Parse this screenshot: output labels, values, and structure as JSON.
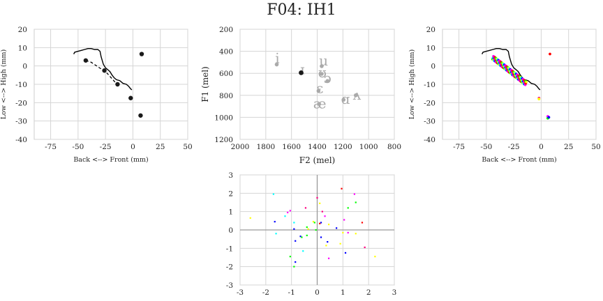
{
  "title": "F04: IH1",
  "chart_data": [
    {
      "id": "ax1",
      "type": "line",
      "xlabel": "Back <--> Front (mm)",
      "ylabel": "Low <--> High (mm)",
      "xlim": [
        -90,
        50
      ],
      "ylim": [
        -40,
        20
      ],
      "xticks": [
        -75,
        -50,
        -25,
        0,
        25,
        50
      ],
      "yticks": [
        -40,
        -30,
        -20,
        -10,
        0,
        10,
        20
      ],
      "grid": true,
      "solid_line": [
        [
          -54,
          6.5
        ],
        [
          -53,
          7.5
        ],
        [
          -50,
          8
        ],
        [
          -47,
          8.5
        ],
        [
          -44,
          9
        ],
        [
          -41,
          9.5
        ],
        [
          -38,
          9.5
        ],
        [
          -35,
          9
        ],
        [
          -32,
          9
        ],
        [
          -30,
          8
        ],
        [
          -29,
          5
        ],
        [
          -27,
          1
        ],
        [
          -25,
          -1
        ],
        [
          -23,
          -2
        ],
        [
          -21,
          -3
        ],
        [
          -19,
          -5
        ],
        [
          -17,
          -6.5
        ],
        [
          -15,
          -7.5
        ],
        [
          -12,
          -8
        ],
        [
          -9,
          -9.5
        ],
        [
          -6,
          -10
        ],
        [
          -4,
          -11
        ],
        [
          -2,
          -12.5
        ],
        [
          -1,
          -13
        ]
      ],
      "dashed_line": [
        [
          -43,
          3
        ],
        [
          -38,
          2
        ],
        [
          -33,
          0
        ],
        [
          -28,
          -2
        ],
        [
          -25,
          -3
        ],
        [
          -22,
          -5
        ],
        [
          -19,
          -7
        ],
        [
          -16,
          -9
        ],
        [
          -14,
          -10
        ]
      ],
      "points": [
        [
          -43,
          3
        ],
        [
          -26,
          -2.5
        ],
        [
          -14,
          -10
        ],
        [
          -2,
          -17.5
        ],
        [
          8,
          6.5
        ],
        [
          7,
          -27
        ]
      ],
      "colors": {
        "line": "#000000",
        "point": "#1a1a1a"
      }
    },
    {
      "id": "ax2",
      "type": "scatter",
      "xlabel": "F2 (mel)",
      "ylabel": "F1 (mel)",
      "xlim": [
        2000,
        800
      ],
      "ylim": [
        1200,
        200
      ],
      "xticks": [
        2000,
        1800,
        1600,
        1400,
        1200,
        1000,
        800
      ],
      "yticks": [
        200,
        400,
        600,
        800,
        1000,
        1200
      ],
      "grid": true,
      "vowels": [
        {
          "label": "i",
          "x": 1710,
          "y": 470
        },
        {
          "label": "ɪ",
          "x": 1515,
          "y": 570
        },
        {
          "label": "u",
          "x": 1350,
          "y": 490
        },
        {
          "label": "ʊ",
          "x": 1360,
          "y": 600
        },
        {
          "label": "ɔ",
          "x": 1320,
          "y": 650
        },
        {
          "label": "ɛ",
          "x": 1380,
          "y": 740
        },
        {
          "label": "æ",
          "x": 1380,
          "y": 880
        },
        {
          "label": "ɑ",
          "x": 1180,
          "y": 840
        },
        {
          "label": "ʌ",
          "x": 1090,
          "y": 800
        }
      ],
      "vowel_points": [
        [
          1715,
          520
        ],
        [
          1525,
          595
        ],
        [
          1365,
          535
        ],
        [
          1365,
          605
        ],
        [
          1320,
          670
        ],
        [
          1390,
          760
        ],
        [
          1385,
          880
        ],
        [
          1195,
          840
        ],
        [
          1100,
          800
        ]
      ],
      "highlight": {
        "x": 1525,
        "y": 595
      },
      "colors": {
        "vowel": "#aaaaaa",
        "highlight": "#1a1a1a"
      }
    },
    {
      "id": "ax3",
      "type": "line",
      "xlabel": "Back <--> Front (mm)",
      "ylabel": "Low <--> High (mm)",
      "xlim": [
        -90,
        50
      ],
      "ylim": [
        -40,
        20
      ],
      "xticks": [
        -75,
        -50,
        -25,
        0,
        25,
        50
      ],
      "yticks": [
        -40,
        -30,
        -20,
        -10,
        0,
        10,
        20
      ],
      "grid": true,
      "solid_line": [
        [
          -54,
          6.5
        ],
        [
          -53,
          7.5
        ],
        [
          -50,
          8
        ],
        [
          -47,
          8.5
        ],
        [
          -44,
          9
        ],
        [
          -41,
          9.5
        ],
        [
          -38,
          9.5
        ],
        [
          -35,
          9
        ],
        [
          -32,
          9
        ],
        [
          -30,
          8
        ],
        [
          -29,
          5
        ],
        [
          -27,
          1
        ],
        [
          -25,
          -1
        ],
        [
          -23,
          -2
        ],
        [
          -21,
          -3
        ],
        [
          -19,
          -5
        ],
        [
          -17,
          -6.5
        ],
        [
          -15,
          -7.5
        ],
        [
          -12,
          -8
        ],
        [
          -9,
          -9.5
        ],
        [
          -6,
          -10
        ],
        [
          -4,
          -11
        ],
        [
          -2,
          -12.5
        ],
        [
          -1,
          -13
        ]
      ],
      "trajectory_start": [
        -44,
        4.5
      ],
      "trajectory_end": [
        -14,
        -9.5
      ],
      "trajectory_count": 40,
      "trajectory_bands": [
        -0.8,
        0,
        0.8
      ],
      "outliers": [
        [
          -2,
          -17.5
        ],
        [
          -2,
          -18
        ],
        [
          6,
          -27.5
        ],
        [
          6,
          -28.5
        ],
        [
          7,
          -28
        ],
        [
          8,
          6.5
        ]
      ],
      "colors": {
        "line": "#000000"
      },
      "palette": [
        "#00ff00",
        "#ffff00",
        "#00ffff",
        "#0000ff",
        "#ff00ff",
        "#ff0080",
        "#ff0000"
      ]
    },
    {
      "id": "ax4",
      "type": "scatter",
      "xlim": [
        -3,
        3
      ],
      "ylim": [
        -3,
        3
      ],
      "xticks": [
        -3,
        -2,
        -1,
        0,
        1,
        2,
        3
      ],
      "yticks": [
        -3,
        -2,
        -1,
        0,
        1,
        2,
        3
      ],
      "grid": true,
      "zero_lines": true,
      "points": [
        [
          -2.6,
          0.65,
          "#ffff00"
        ],
        [
          -1.7,
          1.95,
          "#00ffff"
        ],
        [
          -1.65,
          0.45,
          "#0000ff"
        ],
        [
          -1.6,
          -0.2,
          "#00ffff"
        ],
        [
          -1.25,
          0.75,
          "#00ffff"
        ],
        [
          -1.15,
          0.95,
          "#ff00ff"
        ],
        [
          -1.05,
          1.05,
          "#ff00ff"
        ],
        [
          -1.05,
          -1.45,
          "#00ff00"
        ],
        [
          -0.9,
          0.05,
          "#0000ff"
        ],
        [
          -0.85,
          -0.6,
          "#0000ff"
        ],
        [
          -0.85,
          -1.75,
          "#0000ff"
        ],
        [
          -0.9,
          -2.0,
          "#00ff00"
        ],
        [
          -0.9,
          0.4,
          "#00ffff"
        ],
        [
          -0.65,
          -0.35,
          "#0000ff"
        ],
        [
          -0.6,
          -0.4,
          "#00ff00"
        ],
        [
          -0.55,
          -1.15,
          "#00ffff"
        ],
        [
          -0.45,
          1.2,
          "#ff0080"
        ],
        [
          -0.4,
          -0.3,
          "#00ff00"
        ],
        [
          -0.4,
          0.15,
          "#00ff00"
        ],
        [
          -0.35,
          0.05,
          "#ffff00"
        ],
        [
          -0.15,
          0.45,
          "#ffff00"
        ],
        [
          -0.1,
          0.4,
          "#00ff00"
        ],
        [
          -0.05,
          0.0,
          "#00ff00"
        ],
        [
          0.0,
          1.75,
          "#ff0080"
        ],
        [
          0.1,
          0.35,
          "#ff0000"
        ],
        [
          0.1,
          1.45,
          "#ffff00"
        ],
        [
          0.15,
          0.4,
          "#0000ff"
        ],
        [
          0.15,
          -0.4,
          "#0000ff"
        ],
        [
          0.2,
          1.0,
          "#ff0080"
        ],
        [
          0.3,
          0.75,
          "#ff00ff"
        ],
        [
          0.35,
          -0.85,
          "#ffff00"
        ],
        [
          0.4,
          -0.65,
          "#0000ff"
        ],
        [
          0.45,
          -1.55,
          "#ff00ff"
        ],
        [
          0.45,
          0.3,
          "#ffff00"
        ],
        [
          0.75,
          0.1,
          "#0000ff"
        ],
        [
          0.9,
          -0.75,
          "#ffff00"
        ],
        [
          0.95,
          2.25,
          "#ff0000"
        ],
        [
          1.0,
          -0.15,
          "#ffff00"
        ],
        [
          1.05,
          0.55,
          "#ff00ff"
        ],
        [
          1.1,
          -1.25,
          "#0000ff"
        ],
        [
          1.2,
          1.2,
          "#00ff00"
        ],
        [
          1.2,
          -0.15,
          "#ff00ff"
        ],
        [
          1.45,
          1.95,
          "#ff00ff"
        ],
        [
          1.5,
          1.5,
          "#00ff00"
        ],
        [
          1.5,
          -0.2,
          "#ffff00"
        ],
        [
          1.75,
          0.4,
          "#ff0000"
        ],
        [
          1.85,
          -0.95,
          "#ff0080"
        ],
        [
          2.25,
          -1.45,
          "#ffff00"
        ]
      ]
    }
  ]
}
